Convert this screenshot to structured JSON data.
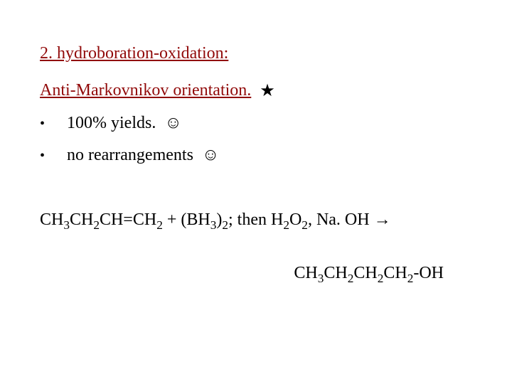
{
  "colors": {
    "heading": "#910a0a",
    "body": "#000000",
    "background": "#ffffff"
  },
  "typography": {
    "font_family": "Times New Roman",
    "heading_fontsize": 24,
    "body_fontsize": 24,
    "sub_scale": 0.72
  },
  "heading": "2.  hydroboration-oxidation:",
  "subheading": "Anti-Markovnikov orientation.",
  "star_glyph": "★",
  "bullets": [
    {
      "text": "100% yields.",
      "emoji": "☺"
    },
    {
      "text": "no rearrangements",
      "emoji": "☺"
    }
  ],
  "equation": {
    "line1_plain": "CH3CH2CH=CH2  + (BH3)2; then H2O2, Na. OH →",
    "line2_plain": "CH3CH2CH2CH2-OH",
    "line1_parts": [
      {
        "t": "CH"
      },
      {
        "s": "3"
      },
      {
        "t": "CH"
      },
      {
        "s": "2"
      },
      {
        "t": "CH=CH"
      },
      {
        "s": "2"
      },
      {
        "t": "  + (BH"
      },
      {
        "s": "3"
      },
      {
        "t": ")"
      },
      {
        "s": "2"
      },
      {
        "t": "; then H"
      },
      {
        "s": "2"
      },
      {
        "t": "O"
      },
      {
        "s": "2"
      },
      {
        "t": ", Na. OH →"
      }
    ],
    "line2_parts": [
      {
        "t": "CH"
      },
      {
        "s": "3"
      },
      {
        "t": "CH"
      },
      {
        "s": "2"
      },
      {
        "t": "CH"
      },
      {
        "s": "2"
      },
      {
        "t": "CH"
      },
      {
        "s": "2"
      },
      {
        "t": "-OH"
      }
    ]
  }
}
